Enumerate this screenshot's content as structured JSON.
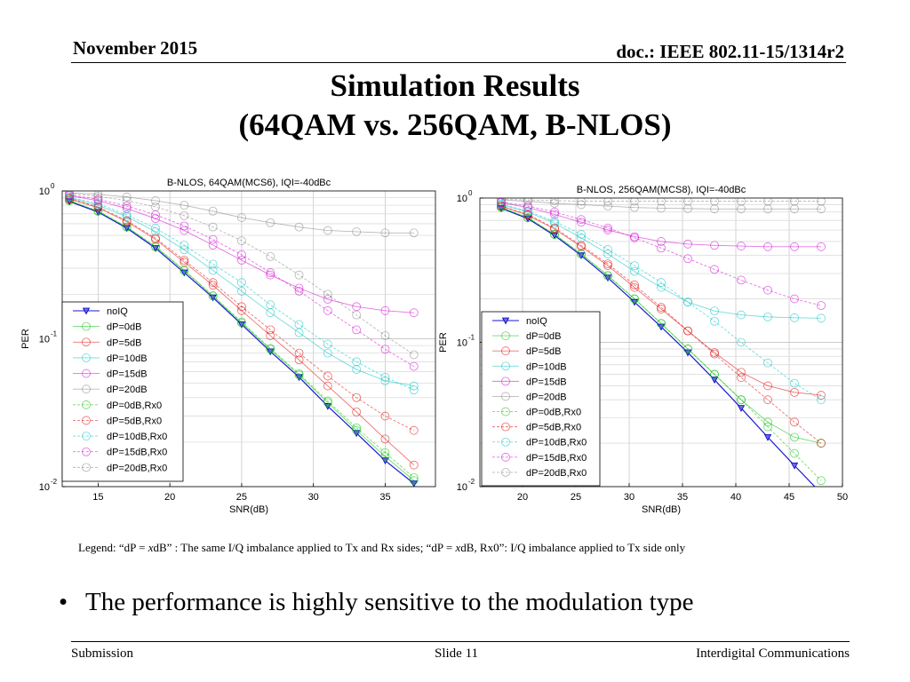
{
  "header": {
    "date": "November 2015",
    "doc": "doc.: IEEE 802.11-15/1314r2"
  },
  "title": {
    "line1": "Simulation Results",
    "line2": "(64QAM vs. 256QAM, B-NLOS)"
  },
  "chart_data": [
    {
      "type": "line",
      "title": "B-NLOS, 64QAM(MCS6), IQI=-40dBc",
      "xlabel": "SNR(dB)",
      "ylabel": "PER",
      "xlim": [
        12.5,
        38.5
      ],
      "ylim": [
        0.01,
        1
      ],
      "yscale": "log",
      "xticks": [
        15,
        20,
        25,
        30,
        35
      ],
      "yticks": [
        {
          "value": 1,
          "label": "10",
          "exp": "0"
        },
        {
          "value": 0.1,
          "label": "10",
          "exp": "-1"
        },
        {
          "value": 0.01,
          "label": "10",
          "exp": "-2"
        }
      ],
      "grid": true,
      "legend_position": "middle-left",
      "x": [
        13,
        15,
        17,
        19,
        21,
        23,
        25,
        27,
        29,
        31,
        33,
        35,
        37
      ],
      "series": [
        {
          "name": "noIQ",
          "color": "#0000cc",
          "marker": "triangle",
          "values": [
            0.85,
            0.72,
            0.56,
            0.41,
            0.28,
            0.19,
            0.125,
            0.082,
            0.055,
            0.035,
            0.023,
            0.015,
            0.0105
          ]
        },
        {
          "name": "dP=0dB",
          "color": "#00c000",
          "marker": "circle",
          "values": [
            0.86,
            0.73,
            0.57,
            0.42,
            0.29,
            0.195,
            0.128,
            0.085,
            0.057,
            0.037,
            0.024,
            0.016,
            0.011
          ]
        },
        {
          "name": "dP=5dB",
          "color": "#e00000",
          "marker": "circle",
          "values": [
            0.88,
            0.77,
            0.62,
            0.47,
            0.33,
            0.23,
            0.155,
            0.105,
            0.072,
            0.048,
            0.032,
            0.021,
            0.014
          ]
        },
        {
          "name": "dP=10dB",
          "color": "#00c0c0",
          "marker": "circle",
          "values": [
            0.9,
            0.8,
            0.67,
            0.53,
            0.4,
            0.29,
            0.21,
            0.15,
            0.11,
            0.08,
            0.062,
            0.052,
            0.048
          ]
        },
        {
          "name": "dP=15dB",
          "color": "#d000d0",
          "marker": "circle",
          "values": [
            0.93,
            0.86,
            0.76,
            0.65,
            0.54,
            0.43,
            0.34,
            0.27,
            0.22,
            0.185,
            0.165,
            0.155,
            0.15
          ]
        },
        {
          "name": "dP=20dB",
          "color": "#808080",
          "marker": "circle",
          "values": [
            0.97,
            0.95,
            0.91,
            0.86,
            0.8,
            0.73,
            0.66,
            0.61,
            0.57,
            0.54,
            0.53,
            0.52,
            0.52
          ]
        },
        {
          "name": "dP=0dB,Rx0",
          "color": "#00c000",
          "marker": "circle",
          "values": [
            0.86,
            0.73,
            0.57,
            0.42,
            0.29,
            0.195,
            0.13,
            0.086,
            0.058,
            0.038,
            0.025,
            0.017,
            0.0115
          ]
        },
        {
          "name": "dP=5dB,Rx0",
          "color": "#e00000",
          "marker": "circle",
          "values": [
            0.89,
            0.78,
            0.63,
            0.48,
            0.34,
            0.24,
            0.165,
            0.115,
            0.08,
            0.056,
            0.04,
            0.03,
            0.024
          ]
        },
        {
          "name": "dP=10dB,Rx0",
          "color": "#00c0c0",
          "marker": "circle",
          "values": [
            0.91,
            0.82,
            0.69,
            0.56,
            0.43,
            0.32,
            0.24,
            0.17,
            0.125,
            0.092,
            0.07,
            0.055,
            0.045
          ]
        },
        {
          "name": "dP=15dB,Rx0",
          "color": "#d000d0",
          "marker": "circle",
          "values": [
            0.94,
            0.88,
            0.79,
            0.69,
            0.58,
            0.47,
            0.37,
            0.28,
            0.21,
            0.155,
            0.115,
            0.085,
            0.065
          ]
        },
        {
          "name": "dP=20dB,Rx0",
          "color": "#808080",
          "marker": "circle",
          "values": [
            0.96,
            0.92,
            0.86,
            0.78,
            0.68,
            0.57,
            0.46,
            0.36,
            0.27,
            0.2,
            0.145,
            0.105,
            0.078
          ]
        }
      ]
    },
    {
      "type": "line",
      "title": "B-NLOS, 256QAM(MCS8), IQI=-40dBc",
      "xlabel": "SNR(dB)",
      "ylabel": "PER",
      "xlim": [
        16,
        50
      ],
      "ylim": [
        0.01,
        1
      ],
      "yscale": "log",
      "xticks": [
        20,
        25,
        30,
        35,
        40,
        45,
        50
      ],
      "yticks": [
        {
          "value": 1,
          "label": "10",
          "exp": "0"
        },
        {
          "value": 0.1,
          "label": "10",
          "exp": "-1"
        },
        {
          "value": 0.01,
          "label": "10",
          "exp": "-2"
        }
      ],
      "grid": true,
      "legend_position": "middle-left",
      "x": [
        18,
        20.5,
        23,
        25.5,
        28,
        30.5,
        33,
        35.5,
        38,
        40.5,
        43,
        45.5,
        48
      ],
      "series": [
        {
          "name": "noIQ",
          "color": "#0000cc",
          "marker": "triangle",
          "values": [
            0.85,
            0.72,
            0.55,
            0.4,
            0.28,
            0.19,
            0.128,
            0.085,
            0.055,
            0.035,
            0.022,
            0.014,
            0.009
          ]
        },
        {
          "name": "dP=0dB",
          "color": "#00c000",
          "marker": "circle",
          "values": [
            0.86,
            0.73,
            0.56,
            0.41,
            0.29,
            0.2,
            0.135,
            0.09,
            0.06,
            0.04,
            0.028,
            0.022,
            0.02
          ]
        },
        {
          "name": "dP=5dB",
          "color": "#e00000",
          "marker": "circle",
          "values": [
            0.88,
            0.76,
            0.61,
            0.46,
            0.34,
            0.24,
            0.17,
            0.12,
            0.085,
            0.062,
            0.05,
            0.045,
            0.043
          ]
        },
        {
          "name": "dP=10dB",
          "color": "#00c0c0",
          "marker": "circle",
          "values": [
            0.9,
            0.8,
            0.67,
            0.53,
            0.41,
            0.31,
            0.24,
            0.19,
            0.165,
            0.155,
            0.15,
            0.148,
            0.147
          ]
        },
        {
          "name": "dP=15dB",
          "color": "#d000d0",
          "marker": "circle",
          "values": [
            0.93,
            0.86,
            0.77,
            0.68,
            0.6,
            0.54,
            0.5,
            0.48,
            0.47,
            0.465,
            0.46,
            0.46,
            0.46
          ]
        },
        {
          "name": "dP=20dB",
          "color": "#808080",
          "marker": "circle",
          "values": [
            0.97,
            0.95,
            0.92,
            0.9,
            0.88,
            0.86,
            0.85,
            0.845,
            0.84,
            0.84,
            0.84,
            0.84,
            0.84
          ]
        },
        {
          "name": "dP=0dB,Rx0",
          "color": "#00c000",
          "marker": "circle",
          "values": [
            0.86,
            0.73,
            0.56,
            0.41,
            0.29,
            0.2,
            0.135,
            0.09,
            0.06,
            0.04,
            0.026,
            0.017,
            0.011
          ]
        },
        {
          "name": "dP=5dB,Rx0",
          "color": "#e00000",
          "marker": "circle",
          "values": [
            0.88,
            0.77,
            0.62,
            0.47,
            0.35,
            0.25,
            0.175,
            0.12,
            0.083,
            0.057,
            0.04,
            0.028,
            0.02
          ]
        },
        {
          "name": "dP=10dB,Rx0",
          "color": "#00c0c0",
          "marker": "circle",
          "values": [
            0.91,
            0.81,
            0.69,
            0.56,
            0.44,
            0.34,
            0.26,
            0.19,
            0.14,
            0.1,
            0.072,
            0.052,
            0.04
          ]
        },
        {
          "name": "dP=15dB,Rx0",
          "color": "#d000d0",
          "marker": "circle",
          "values": [
            0.94,
            0.88,
            0.8,
            0.71,
            0.62,
            0.53,
            0.45,
            0.38,
            0.32,
            0.27,
            0.23,
            0.2,
            0.18
          ]
        },
        {
          "name": "dP=20dB,Rx0",
          "color": "#808080",
          "marker": "circle",
          "values": [
            0.98,
            0.97,
            0.96,
            0.95,
            0.95,
            0.95,
            0.95,
            0.95,
            0.95,
            0.95,
            0.95,
            0.95,
            0.95
          ]
        }
      ]
    }
  ],
  "legend_caption": {
    "prefix": "Legend:  “dP = ",
    "x1": "x",
    "mid1": "dB” : The same I/Q imbalance applied to Tx and Rx sides;  “dP = ",
    "x2": "x",
    "mid2": "dB, Rx0”: I/Q imbalance applied to Tx side only"
  },
  "bullet": "The performance is highly sensitive to the modulation type",
  "footer": {
    "left": "Submission",
    "center": "Slide 11",
    "right": "Interdigital Communications"
  }
}
